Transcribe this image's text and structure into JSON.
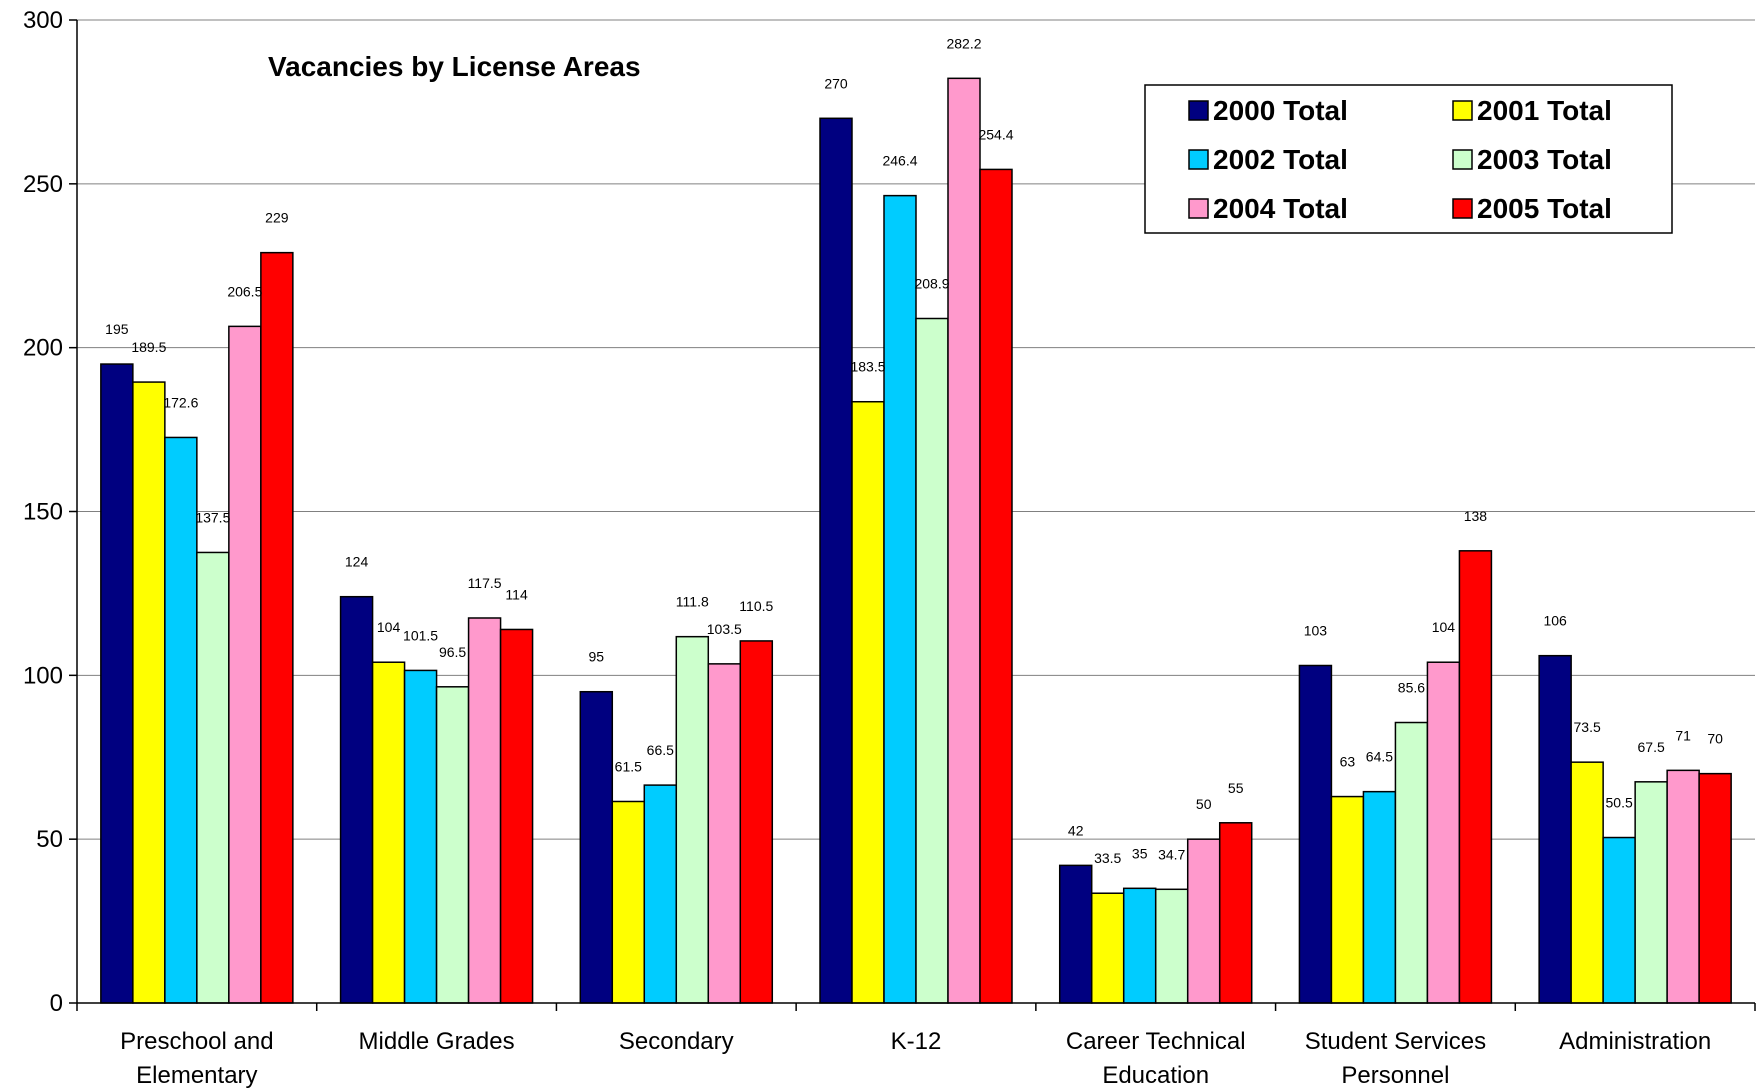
{
  "chart_data": {
    "type": "bar",
    "title": "Vacancies by License Areas",
    "xlabel": "",
    "ylabel": "",
    "ylim": [
      0,
      300
    ],
    "yticks": [
      0,
      50,
      100,
      150,
      200,
      250,
      300
    ],
    "grid": true,
    "legend_position": "top-right",
    "categories": [
      [
        "Preschool and",
        "Elementary"
      ],
      [
        "Middle Grades"
      ],
      [
        "Secondary"
      ],
      [
        "K-12"
      ],
      [
        "Career Technical",
        "Education"
      ],
      [
        "Student Services",
        "Personnel"
      ],
      [
        "Administration"
      ]
    ],
    "series": [
      {
        "name": "2000 Total",
        "color": "#000080",
        "values": [
          195,
          124,
          95,
          270,
          42,
          103,
          106
        ],
        "labels": [
          "195",
          "124",
          "95",
          "270",
          "42",
          "103",
          "106"
        ]
      },
      {
        "name": "2001 Total",
        "color": "#FFFF00",
        "values": [
          189.5,
          104,
          61.5,
          183.5,
          33.5,
          63,
          73.5
        ],
        "labels": [
          "189.5",
          "104",
          "61.5",
          "183.5",
          "33.5",
          "63",
          "73.5"
        ]
      },
      {
        "name": "2002 Total",
        "color": "#00CCFF",
        "values": [
          172.6,
          101.5,
          66.5,
          246.4,
          35,
          64.5,
          50.5
        ],
        "labels": [
          "172.6",
          "101.5",
          "66.5",
          "246.4",
          "35",
          "64.5",
          "50.5"
        ]
      },
      {
        "name": "2003 Total",
        "color": "#CCFFCC",
        "values": [
          137.5,
          96.5,
          111.8,
          208.9,
          34.7,
          85.6,
          67.5
        ],
        "labels": [
          "137.5",
          "96.5",
          "111.8",
          "208.9",
          "34.7",
          "85.6",
          "67.5"
        ]
      },
      {
        "name": "2004 Total",
        "color": "#FF99CC",
        "values": [
          206.5,
          117.5,
          103.5,
          282.2,
          50,
          104,
          71
        ],
        "labels": [
          "206.5",
          "117.5",
          "103.5",
          "282.2",
          "50",
          "104",
          "71"
        ]
      },
      {
        "name": "2005 Total",
        "color": "#FF0000",
        "values": [
          229,
          114,
          110.5,
          254.4,
          55,
          138,
          70
        ],
        "labels": [
          "229",
          "114",
          "110.5",
          "254.4",
          "55",
          "138",
          "70"
        ]
      }
    ]
  }
}
